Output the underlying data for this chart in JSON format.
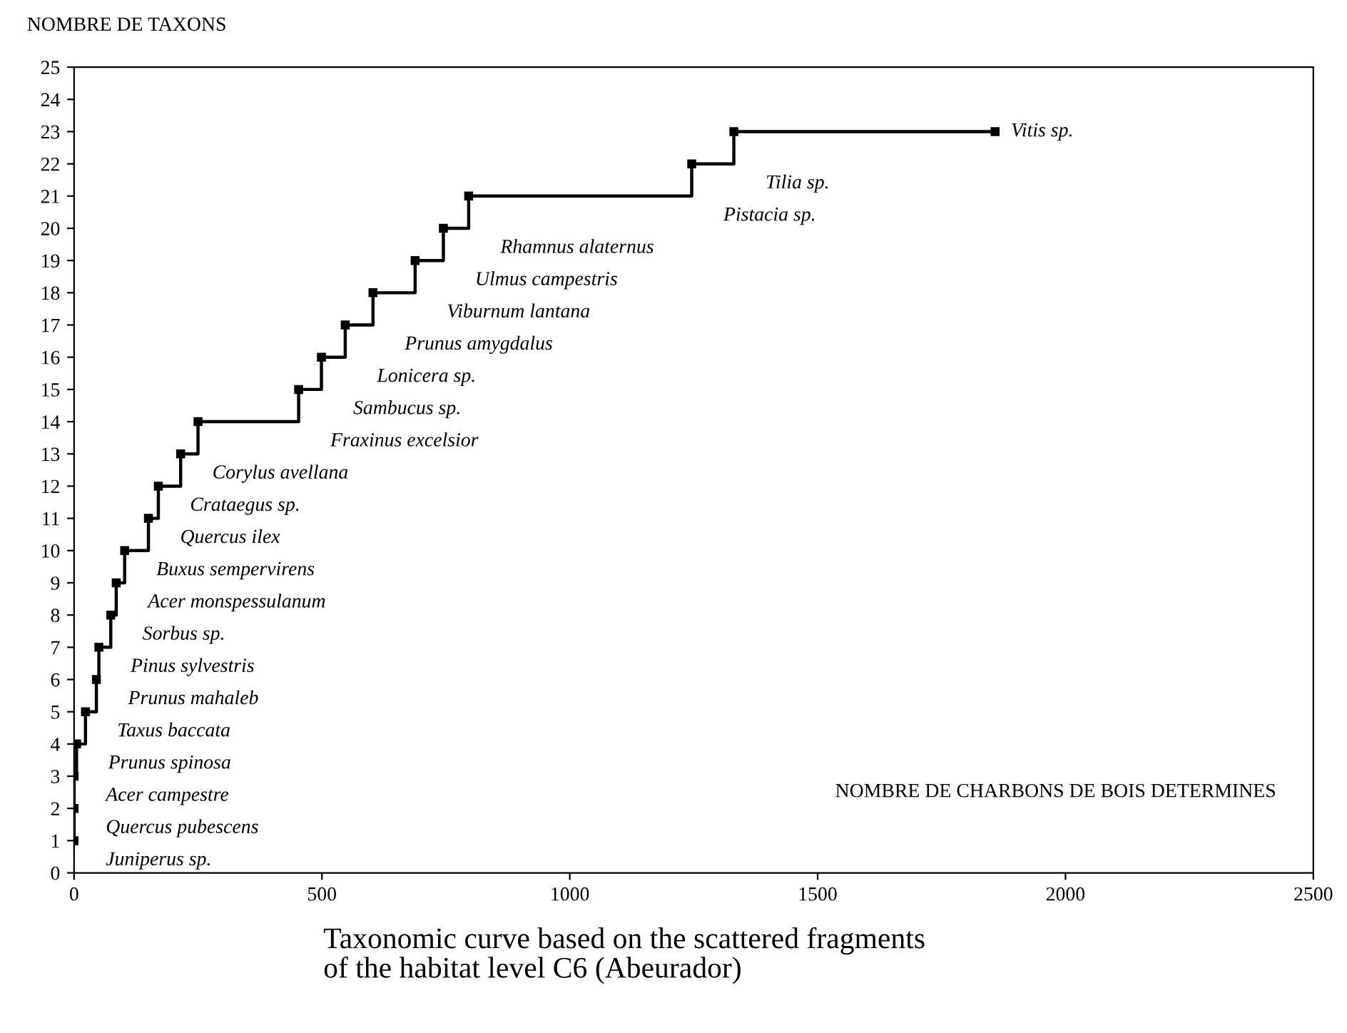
{
  "chart_data": {
    "type": "step",
    "title": "Taxonomic curve based on the scattered fragments\nof the habitat level C6 (Abeurador)",
    "xlabel": "NOMBRE DE CHARBONS DE BOIS DETERMINES",
    "ylabel": "NOMBRE DE TAXONS",
    "x": [
      0,
      0,
      0,
      5,
      23,
      45,
      50,
      74,
      85,
      102,
      150,
      170,
      215,
      250,
      453,
      499,
      547,
      603,
      688,
      745,
      796,
      1246,
      1331,
      1858
    ],
    "series": [
      {
        "color": "#000000",
        "values": [
          1,
          2,
          3,
          4,
          5,
          6,
          7,
          8,
          9,
          10,
          11,
          12,
          13,
          14,
          15,
          16,
          17,
          18,
          19,
          20,
          21,
          22,
          23,
          23
        ]
      }
    ],
    "annotations": [
      {
        "text": "Juniperus sp.",
        "x": 0,
        "y": 1
      },
      {
        "text": "Quercus pubescens",
        "x": 0,
        "y": 2
      },
      {
        "text": "Acer campestre",
        "x": 0,
        "y": 3
      },
      {
        "text": "Prunus spinosa",
        "x": 5,
        "y": 4
      },
      {
        "text": "Taxus baccata",
        "x": 23,
        "y": 5
      },
      {
        "text": "Prunus mahaleb",
        "x": 45,
        "y": 6
      },
      {
        "text": "Pinus sylvestris",
        "x": 50,
        "y": 7
      },
      {
        "text": "Sorbus sp.",
        "x": 74,
        "y": 8
      },
      {
        "text": "Acer monspessulanum",
        "x": 85,
        "y": 9
      },
      {
        "text": "Buxus sempervirens",
        "x": 102,
        "y": 10
      },
      {
        "text": "Quercus ilex",
        "x": 150,
        "y": 11
      },
      {
        "text": "Crataegus sp.",
        "x": 170,
        "y": 12
      },
      {
        "text": "Corylus avellana",
        "x": 215,
        "y": 13
      },
      {
        "text": "Fraxinus excelsior",
        "x": 453,
        "y": 14
      },
      {
        "text": "Sambucus sp.",
        "x": 499,
        "y": 15
      },
      {
        "text": "Lonicera sp.",
        "x": 547,
        "y": 16
      },
      {
        "text": "Prunus amygdalus",
        "x": 603,
        "y": 17
      },
      {
        "text": "Viburnum lantana",
        "x": 688,
        "y": 18
      },
      {
        "text": "Ulmus campestris",
        "x": 745,
        "y": 19
      },
      {
        "text": "Rhamnus alaternus",
        "x": 796,
        "y": 20
      },
      {
        "text": "Pistacia sp.",
        "x": 1246,
        "y": 21
      },
      {
        "text": "Tilia sp.",
        "x": 1331,
        "y": 22
      },
      {
        "text": "Vitis sp.",
        "x": 1858,
        "y": 23
      }
    ],
    "xlim": [
      0,
      2500
    ],
    "xticks": [
      0,
      500,
      1000,
      1500,
      2000,
      2500
    ],
    "ylim": [
      0,
      25
    ],
    "yticks": [
      0,
      1,
      2,
      3,
      4,
      5,
      6,
      7,
      8,
      9,
      10,
      11,
      12,
      13,
      14,
      15,
      16,
      17,
      18,
      19,
      20,
      21,
      22,
      23,
      24,
      25
    ],
    "grid": false,
    "marker": "square",
    "line_style": "solid"
  }
}
